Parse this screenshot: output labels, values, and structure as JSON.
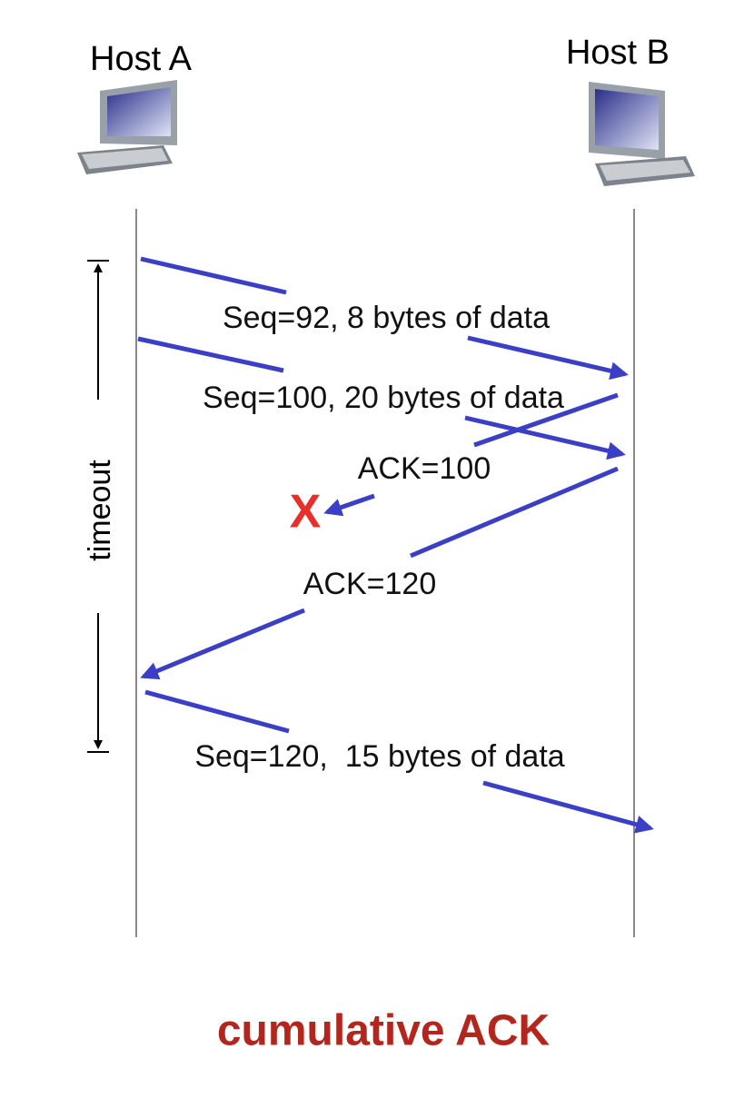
{
  "hosts": [
    {
      "label": "Host A"
    },
    {
      "label": "Host B"
    }
  ],
  "messages": [
    {
      "label": "Seq=92, 8 bytes of data"
    },
    {
      "label": "Seq=100, 20 bytes of data"
    },
    {
      "label": "ACK=100"
    },
    {
      "label": "ACK=120"
    },
    {
      "label": "Seq=120,  15 bytes of data"
    }
  ],
  "timeout": {
    "label": "timeout"
  },
  "loss_marker": {
    "label": "X"
  },
  "caption": "cumulative ACK"
}
